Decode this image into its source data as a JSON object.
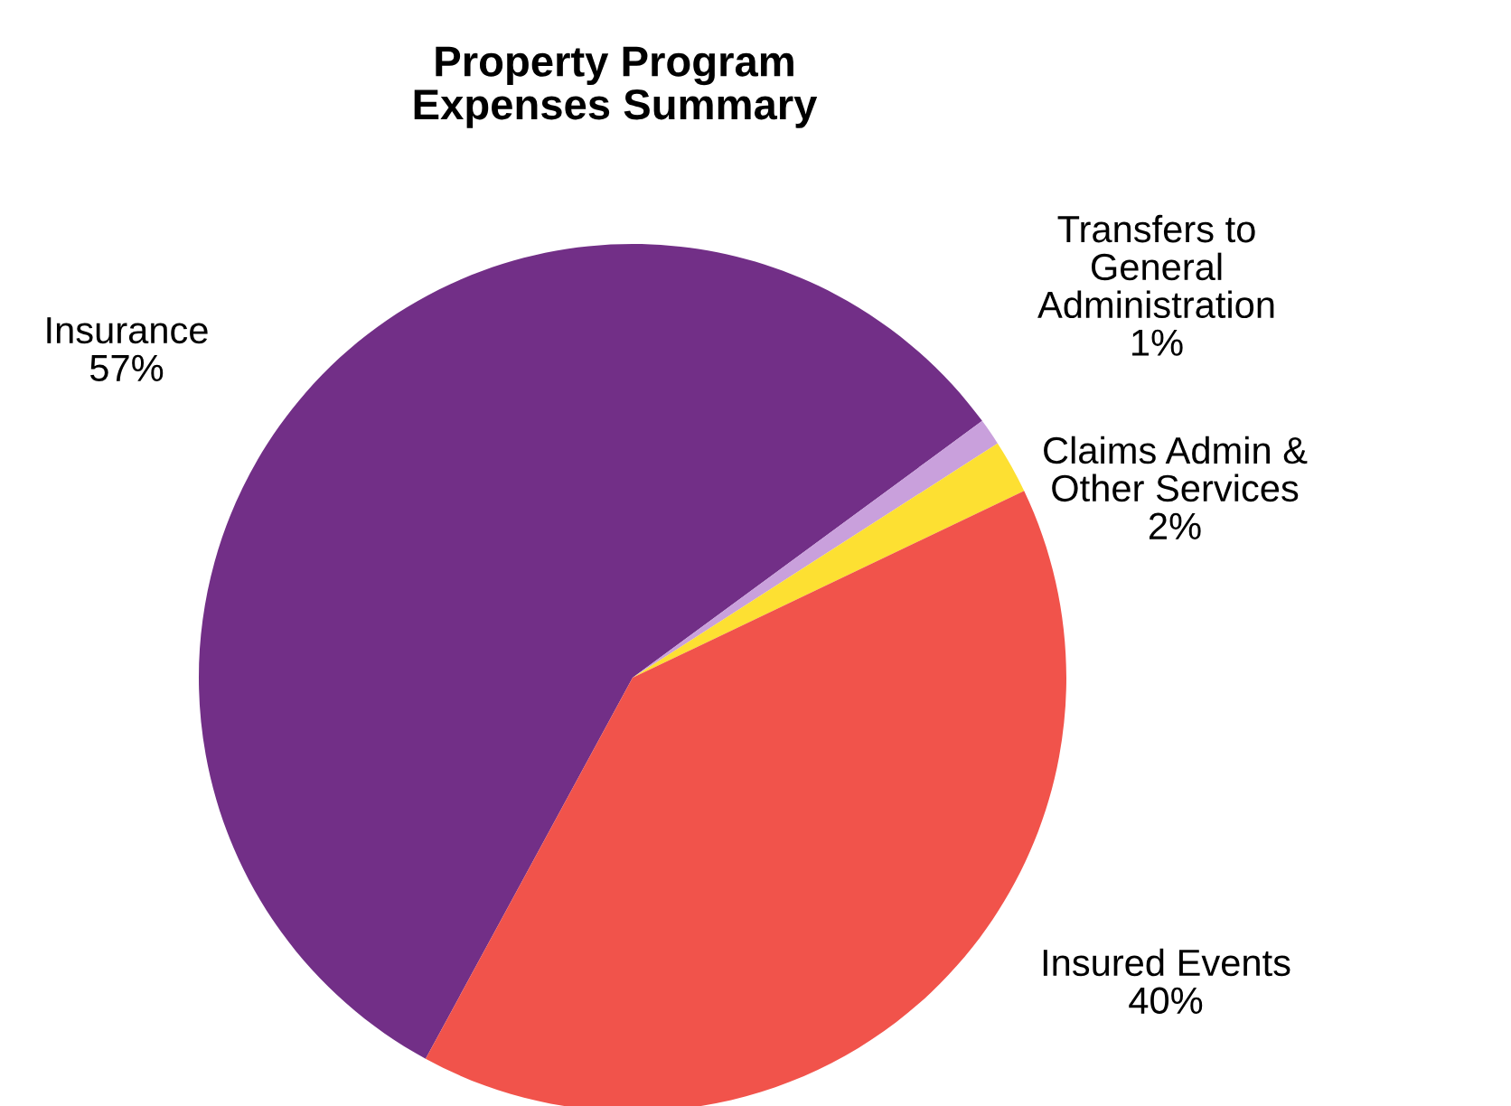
{
  "chart_data": {
    "type": "pie",
    "title": "Property Program\nExpenses Summary",
    "categories": [
      "Insurance",
      "Transfers to\nGeneral\nAdministration",
      "Claims Admin &\nOther Services",
      "Insured Events"
    ],
    "values": [
      57,
      1,
      2,
      40
    ],
    "value_labels": [
      "57%",
      "1%",
      "2%",
      "40%"
    ],
    "colors": [
      "#722f87",
      "#c9a0dc",
      "#fde032",
      "#f1534b"
    ],
    "legend": false
  }
}
